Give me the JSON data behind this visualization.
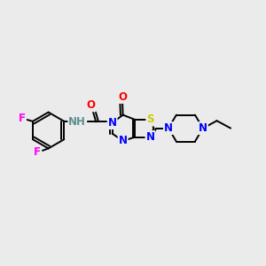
{
  "bg_color": "#ebebeb",
  "bond_color": "#000000",
  "atom_colors": {
    "N": "#0000ff",
    "O": "#ff0000",
    "S": "#cccc00",
    "F": "#ff00ff",
    "H": "#5a9090",
    "C": "#000000"
  },
  "font_size": 8.5,
  "lw": 1.4
}
